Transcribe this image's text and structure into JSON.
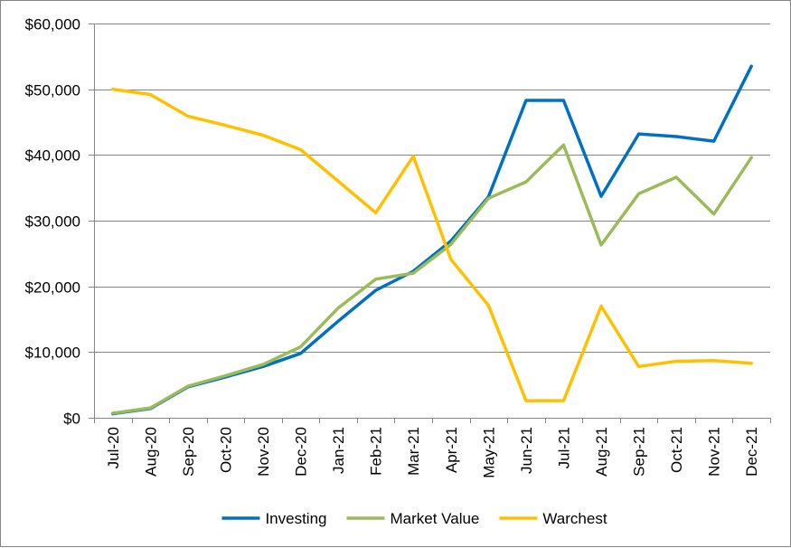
{
  "chart_data": {
    "type": "line",
    "title": "",
    "xlabel": "",
    "ylabel": "",
    "categories": [
      "Jul-20",
      "Aug-20",
      "Sep-20",
      "Oct-20",
      "Nov-20",
      "Dec-20",
      "Jan-21",
      "Feb-21",
      "Mar-21",
      "Apr-21",
      "May-21",
      "Jun-21",
      "Jul-21",
      "Aug-21",
      "Sep-21",
      "Oct-21",
      "Nov-21",
      "Dec-21"
    ],
    "ylim": [
      0,
      60000
    ],
    "y_ticks": [
      0,
      10000,
      20000,
      30000,
      40000,
      50000,
      60000
    ],
    "y_tick_labels": [
      "$0",
      "$10,000",
      "$20,000",
      "$30,000",
      "$40,000",
      "$50,000",
      "$60,000"
    ],
    "grid": "horizontal",
    "legend_position": "bottom",
    "series": [
      {
        "name": "Investing",
        "color": "#0070C0",
        "values": [
          600,
          1400,
          4700,
          6200,
          7800,
          9800,
          14700,
          19400,
          22300,
          26900,
          33600,
          48300,
          48300,
          33700,
          43200,
          42800,
          42100,
          53500
        ]
      },
      {
        "name": "Market Value",
        "color": "#9BBB59",
        "values": [
          700,
          1500,
          4800,
          6400,
          8100,
          10800,
          16700,
          21100,
          22000,
          26400,
          33400,
          35900,
          41500,
          26300,
          34100,
          36600,
          31000,
          39600
        ]
      },
      {
        "name": "Warchest",
        "color": "#FFC000",
        "values": [
          50000,
          49200,
          45900,
          44500,
          43000,
          40800,
          36000,
          31200,
          39800,
          24100,
          17100,
          2600,
          2600,
          17000,
          7800,
          8600,
          8700,
          8300
        ]
      }
    ]
  }
}
